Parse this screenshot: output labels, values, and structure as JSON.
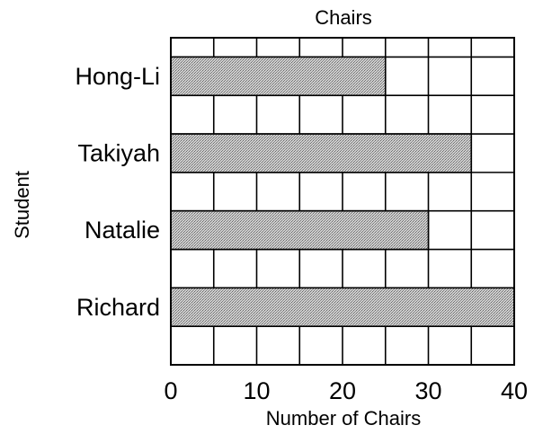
{
  "chart_data": {
    "type": "bar",
    "orientation": "horizontal",
    "title": "Chairs",
    "xlabel": "Number of Chairs",
    "ylabel": "Student",
    "categories": [
      "Hong-Li",
      "Takiyah",
      "Natalie",
      "Richard"
    ],
    "values": [
      25,
      35,
      30,
      40
    ],
    "xlim": [
      0,
      40
    ],
    "xticks": [
      0,
      10,
      20,
      30,
      40
    ],
    "grid": true,
    "bar_color": "#bdbdbd",
    "colors": {
      "axis": "#000000",
      "bar_fill": "#bdbdbd",
      "background": "#ffffff"
    }
  }
}
